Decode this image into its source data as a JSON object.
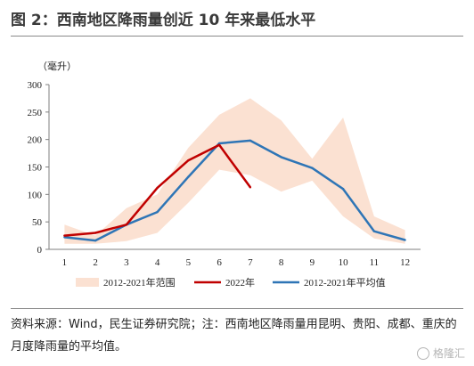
{
  "title": "图 2：西南地区降雨量创近 10 年来最低水平",
  "source_note": "资料来源：Wind，民生证券研究院；注：西南地区降雨量用昆明、贵阳、成都、重庆的月度降雨量的平均值。",
  "watermark": "格隆汇",
  "colors": {
    "range": "#fbe1d2",
    "y2022": "#c00000",
    "average": "#2e75b6",
    "axis": "#7f7f7f"
  },
  "chart_data": {
    "type": "line",
    "unit_label": "（毫升）",
    "categories": [
      1,
      2,
      3,
      4,
      5,
      6,
      7,
      8,
      9,
      10,
      11,
      12
    ],
    "ylim": [
      0,
      300
    ],
    "yticks": [
      0,
      50,
      100,
      150,
      200,
      250,
      300
    ],
    "grid": false,
    "legend_position": "bottom",
    "range": {
      "name": "2012-2021年范围",
      "lower": [
        10,
        10,
        15,
        30,
        85,
        145,
        135,
        105,
        125,
        60,
        20,
        10
      ],
      "upper": [
        45,
        25,
        75,
        100,
        185,
        245,
        275,
        235,
        165,
        240,
        60,
        35
      ]
    },
    "series": [
      {
        "name": "2022年",
        "values": [
          25,
          30,
          45,
          112,
          162,
          190,
          113,
          null,
          null,
          null,
          null,
          null
        ]
      },
      {
        "name": "2012-2021年平均值",
        "values": [
          22,
          16,
          45,
          68,
          132,
          193,
          198,
          168,
          148,
          110,
          33,
          17
        ]
      }
    ]
  }
}
